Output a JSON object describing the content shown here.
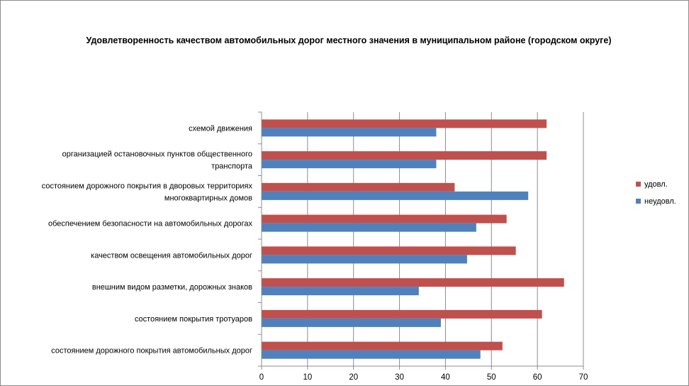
{
  "chart_data": {
    "type": "bar",
    "orientation": "horizontal",
    "title": "Удовлетворенность качеством автомобильных дорог местного значения в муниципальном районе (городском округе)",
    "xlabel": "",
    "ylabel": "",
    "xlim": [
      0,
      70
    ],
    "xticks": [
      "0",
      "10",
      "20",
      "30",
      "40",
      "50",
      "60",
      "70"
    ],
    "grid": "vertical",
    "legend_position": "right",
    "categories": [
      [
        "схемой движения "
      ],
      [
        "организацией остановочных пунктов общественного",
        "транспорта"
      ],
      [
        "состоянием дорожного покрытия в дворовых территориях",
        "многоквартирных домов"
      ],
      [
        "обеспечением  безопасности на автомобильных дорогах"
      ],
      [
        "качеством освещения  автомобильных дорог"
      ],
      [
        "внешним  видом разметки, дорожных знаков"
      ],
      [
        "состоянием покрытия тротуаров"
      ],
      [
        "состоянием дорожного покрытия автомобильных дорог"
      ]
    ],
    "series": [
      {
        "name": "удовл.",
        "color": "#c0504d",
        "values": [
          62,
          62,
          42,
          53.3,
          55.3,
          65.8,
          61,
          52.4
        ]
      },
      {
        "name": "неудовл.",
        "color": "#4f81bd",
        "values": [
          38,
          38,
          58,
          46.7,
          44.7,
          34.2,
          39,
          47.6
        ]
      }
    ]
  }
}
